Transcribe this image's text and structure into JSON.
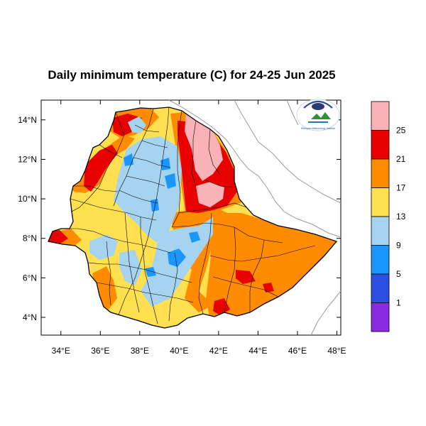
{
  "map": {
    "title": "Daily minimum temperature (C) for 24-25 Jun 2025",
    "logo_text": "Ethiopian Meteorology Institute",
    "lon_ticks": [
      "34°E",
      "36°E",
      "38°E",
      "40°E",
      "42°E",
      "44°E",
      "46°E",
      "48°E"
    ],
    "lat_ticks": [
      "14°N",
      "12°N",
      "10°N",
      "8°N",
      "6°N",
      "4°N"
    ],
    "lon_range": [
      33,
      48.2
    ],
    "lat_range": [
      3.1,
      15
    ]
  },
  "legend": {
    "labels": [
      "25",
      "21",
      "17",
      "13",
      "9",
      "5",
      "1"
    ],
    "bins": [
      {
        "range": ">25",
        "color": "#f9b3b8"
      },
      {
        "range": "21-25",
        "color": "#e60000"
      },
      {
        "range": "17-21",
        "color": "#ff8c00"
      },
      {
        "range": "13-17",
        "color": "#ffe050"
      },
      {
        "range": "9-13",
        "color": "#a6d3ef"
      },
      {
        "range": "5-9",
        "color": "#1a96ff"
      },
      {
        "range": "1-5",
        "color": "#2d4fe0"
      },
      {
        "range": "<1",
        "color": "#8a2be2"
      }
    ]
  }
}
